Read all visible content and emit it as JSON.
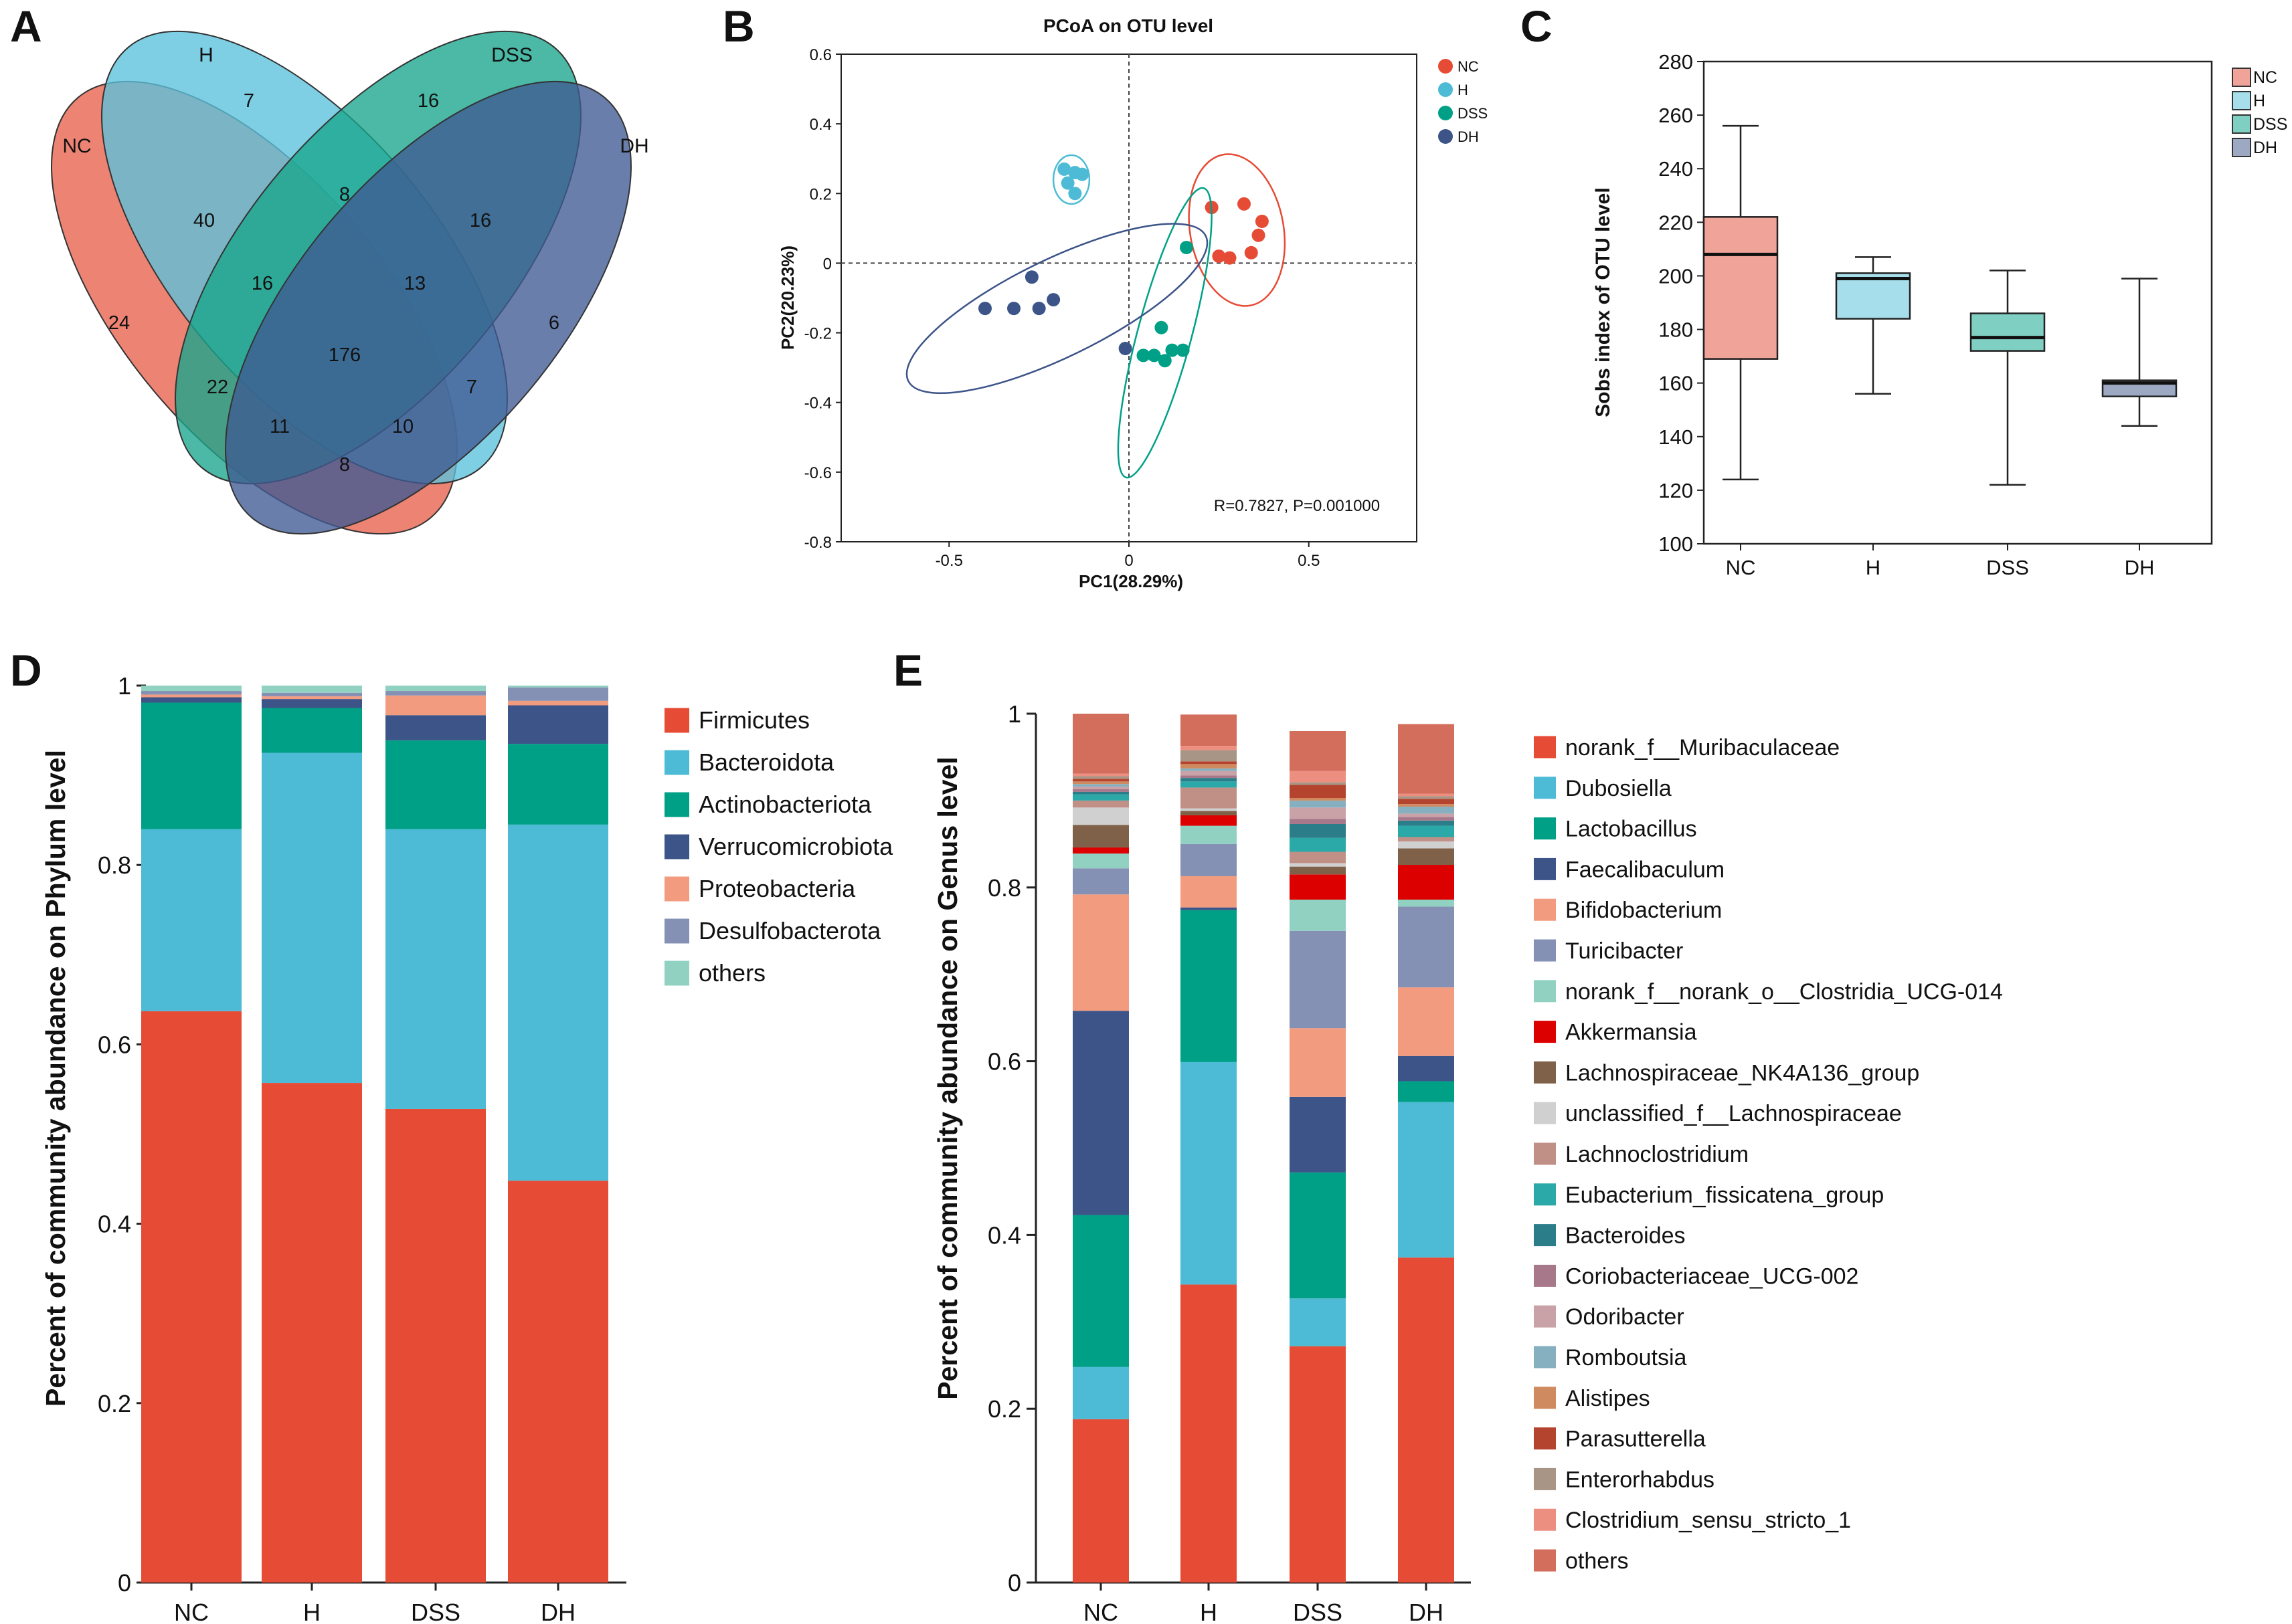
{
  "panel_labels": {
    "a": "A",
    "b": "B",
    "c": "C",
    "d": "D",
    "e": "E"
  },
  "chart_data": [
    {
      "panel": "A",
      "type": "venn",
      "sets": [
        "NC",
        "H",
        "DSS",
        "DH"
      ],
      "colors": {
        "NC": "#e8604c",
        "H": "#5bc2dc",
        "DSS": "#18a58c",
        "DH": "#3f5a92"
      },
      "counts": {
        "NC_only": "24",
        "H_only": "7",
        "DSS_only": "16",
        "DH_only": "6",
        "NC_H": "40",
        "H_DSS": "8",
        "DSS_DH": "16",
        "NC_DH": "8",
        "NC_DSS": "22",
        "H_DH": "7",
        "NC_H_DSS": "16",
        "H_DSS_DH": "13",
        "NC_DSS_DH": "11",
        "NC_H_DH": "10",
        "all": "176"
      }
    },
    {
      "panel": "B",
      "type": "scatter",
      "title": "PCoA on OTU level",
      "xlabel": "PC1(28.29%)",
      "ylabel": "PC2(20.23%)",
      "xlim": [
        -0.8,
        0.8
      ],
      "ylim": [
        -0.8,
        0.6
      ],
      "xticks": [
        -0.5,
        0,
        0.5
      ],
      "xtick_labels": [
        "-0.5",
        "0",
        "0.5"
      ],
      "yticks": [
        -0.8,
        -0.6,
        -0.4,
        -0.2,
        0,
        0.2,
        0.4,
        0.6
      ],
      "ytick_labels": [
        "-0.8",
        "-0.6",
        "-0.4",
        "-0.2",
        "0",
        "0.2",
        "0.4",
        "0.6"
      ],
      "annotation": "R=0.7827, P=0.001000",
      "series": [
        {
          "name": "NC",
          "color": "#e64b35",
          "points": [
            [
              0.23,
              0.16
            ],
            [
              0.32,
              0.17
            ],
            [
              0.37,
              0.12
            ],
            [
              0.36,
              0.08
            ],
            [
              0.25,
              0.02
            ],
            [
              0.28,
              0.015
            ],
            [
              0.34,
              0.03
            ]
          ],
          "ellipse": {
            "cx": 0.3,
            "cy": 0.095,
            "rx": 0.13,
            "ry": 0.22,
            "angle": -10
          }
        },
        {
          "name": "H",
          "color": "#4dbbd5",
          "points": [
            [
              -0.18,
              0.27
            ],
            [
              -0.15,
              0.26
            ],
            [
              -0.13,
              0.255
            ],
            [
              -0.17,
              0.23
            ],
            [
              -0.15,
              0.2
            ]
          ],
          "ellipse": {
            "cx": -0.16,
            "cy": 0.24,
            "rx": 0.05,
            "ry": 0.07,
            "angle": 0
          }
        },
        {
          "name": "DSS",
          "color": "#00a087",
          "points": [
            [
              0.16,
              0.045
            ],
            [
              0.09,
              -0.185
            ],
            [
              0.12,
              -0.25
            ],
            [
              0.04,
              -0.265
            ],
            [
              0.07,
              -0.265
            ],
            [
              0.1,
              -0.28
            ],
            [
              0.15,
              -0.25
            ]
          ],
          "ellipse": {
            "cx": 0.1,
            "cy": -0.2,
            "rx": 0.075,
            "ry": 0.43,
            "angle": 15
          }
        },
        {
          "name": "DH",
          "color": "#3c5488",
          "points": [
            [
              -0.27,
              -0.04
            ],
            [
              -0.4,
              -0.13
            ],
            [
              -0.32,
              -0.13
            ],
            [
              -0.25,
              -0.13
            ],
            [
              -0.21,
              -0.105
            ],
            [
              -0.01,
              -0.245
            ]
          ],
          "ellipse": {
            "cx": -0.2,
            "cy": -0.13,
            "rx": 0.46,
            "ry": 0.14,
            "angle": -26
          }
        }
      ]
    },
    {
      "panel": "C",
      "type": "box",
      "ylabel": "Sobs index of OTU level",
      "ylim": [
        100,
        280
      ],
      "yticks": [
        100,
        120,
        140,
        160,
        180,
        200,
        220,
        240,
        260,
        280
      ],
      "categories": [
        "NC",
        "H",
        "DSS",
        "DH"
      ],
      "colors": [
        "#f0a398",
        "#a6dfeb",
        "#80cfc3",
        "#9da9c3"
      ],
      "boxes": [
        {
          "min": 124,
          "q1": 169,
          "median": 208,
          "q3": 222,
          "max": 256
        },
        {
          "min": 156,
          "q1": 184,
          "median": 199,
          "q3": 201,
          "max": 207
        },
        {
          "min": 122,
          "q1": 172,
          "median": 177,
          "q3": 186,
          "max": 202
        },
        {
          "min": 144,
          "q1": 155,
          "median": 160,
          "q3": 161,
          "max": 199
        }
      ]
    },
    {
      "panel": "D",
      "type": "bar",
      "stacked": true,
      "ylabel": "Percent of community abundance on Phylum level",
      "ylim": [
        0,
        1
      ],
      "yticks": [
        0,
        0.2,
        0.4,
        0.6,
        0.8,
        1
      ],
      "ytick_labels": [
        "0",
        "0.2",
        "0.4",
        "0.6",
        "0.8",
        "1"
      ],
      "categories": [
        "NC",
        "H",
        "DSS",
        "DH"
      ],
      "series": [
        {
          "name": "Firmicutes",
          "color": "#e64b35",
          "values": [
            0.637,
            0.557,
            0.528,
            0.448
          ]
        },
        {
          "name": "Bacteroidota",
          "color": "#4dbbd5",
          "values": [
            0.203,
            0.368,
            0.312,
            0.397
          ]
        },
        {
          "name": "Actinobacteriota",
          "color": "#00a087",
          "values": [
            0.141,
            0.05,
            0.099,
            0.09
          ]
        },
        {
          "name": "Verrucomicrobiota",
          "color": "#3c5488",
          "values": [
            0.006,
            0.01,
            0.028,
            0.043
          ]
        },
        {
          "name": "Proteobacteria",
          "color": "#f39b7f",
          "values": [
            0.003,
            0.003,
            0.022,
            0.005
          ]
        },
        {
          "name": "Desulfobacterota",
          "color": "#8491b4",
          "values": [
            0.004,
            0.004,
            0.005,
            0.015
          ]
        },
        {
          "name": "others",
          "color": "#91d1c2",
          "values": [
            0.006,
            0.008,
            0.006,
            0.002
          ]
        }
      ]
    },
    {
      "panel": "E",
      "type": "bar",
      "stacked": true,
      "ylabel": "Percent of community abundance on Genus level",
      "ylim": [
        0,
        1
      ],
      "yticks": [
        0,
        0.2,
        0.4,
        0.6,
        0.8,
        1
      ],
      "ytick_labels": [
        "0",
        "0.2",
        "0.4",
        "0.6",
        "0.8",
        "1"
      ],
      "categories": [
        "NC",
        "H",
        "DSS",
        "DH"
      ],
      "series": [
        {
          "name": "norank_f__Muribaculaceae",
          "color": "#e64b35",
          "values": [
            0.188,
            0.343,
            0.272,
            0.374
          ]
        },
        {
          "name": "Dubosiella",
          "color": "#4dbbd5",
          "values": [
            0.06,
            0.256,
            0.055,
            0.179
          ]
        },
        {
          "name": "Lactobacillus",
          "color": "#00a087",
          "values": [
            0.175,
            0.175,
            0.145,
            0.024
          ]
        },
        {
          "name": "Faecalibaculum",
          "color": "#3c5488",
          "values": [
            0.235,
            0.003,
            0.087,
            0.029
          ]
        },
        {
          "name": "Bifidobacterium",
          "color": "#f39b7f",
          "values": [
            0.134,
            0.036,
            0.079,
            0.079
          ]
        },
        {
          "name": "Turicibacter",
          "color": "#8491b4",
          "values": [
            0.03,
            0.037,
            0.112,
            0.093
          ]
        },
        {
          "name": "norank_f__norank_o__Clostridia_UCG-014",
          "color": "#91d1c2",
          "values": [
            0.017,
            0.021,
            0.036,
            0.008
          ]
        },
        {
          "name": "Akkermansia",
          "color": "#dc0000",
          "values": [
            0.007,
            0.012,
            0.029,
            0.04
          ]
        },
        {
          "name": "Lachnospiraceae_NK4A136_group",
          "color": "#7e6148",
          "values": [
            0.026,
            0.005,
            0.009,
            0.019
          ]
        },
        {
          "name": "unclassified_f__Lachnospiraceae",
          "color": "#d0d0d0",
          "values": [
            0.02,
            0.003,
            0.004,
            0.008
          ]
        },
        {
          "name": "Lachnoclostridium",
          "color": "#c08f86",
          "values": [
            0.008,
            0.024,
            0.013,
            0.005
          ]
        },
        {
          "name": "Eubacterium_fissicatena_group",
          "color": "#2aa9a8",
          "values": [
            0.007,
            0.007,
            0.016,
            0.013
          ]
        },
        {
          "name": "Bacteroides",
          "color": "#2b7e89",
          "values": [
            0.003,
            0.004,
            0.016,
            0.006
          ]
        },
        {
          "name": "Coriobacteriaceae_UCG-002",
          "color": "#a7778a",
          "values": [
            0.003,
            0.003,
            0.006,
            0.004
          ]
        },
        {
          "name": "Odoribacter",
          "color": "#c9a2a8",
          "values": [
            0.003,
            0.005,
            0.013,
            0.004
          ]
        },
        {
          "name": "Romboutsia",
          "color": "#86b0c0",
          "values": [
            0.003,
            0.003,
            0.008,
            0.008
          ]
        },
        {
          "name": "Alistipes",
          "color": "#d08a60",
          "values": [
            0.003,
            0.005,
            0.003,
            0.003
          ]
        },
        {
          "name": "Parasutterella",
          "color": "#b5442e",
          "values": [
            0.003,
            0.003,
            0.015,
            0.006
          ]
        },
        {
          "name": "Enterorhabdus",
          "color": "#a89585",
          "values": [
            0.003,
            0.013,
            0.003,
            0.003
          ]
        },
        {
          "name": "Clostridium_sensu_stricto_1",
          "color": "#ec8f81",
          "values": [
            0.003,
            0.005,
            0.013,
            0.003
          ]
        },
        {
          "name": "others",
          "color": "#d36d5c",
          "values": [
            0.069,
            0.036,
            0.046,
            0.08
          ]
        }
      ]
    }
  ]
}
